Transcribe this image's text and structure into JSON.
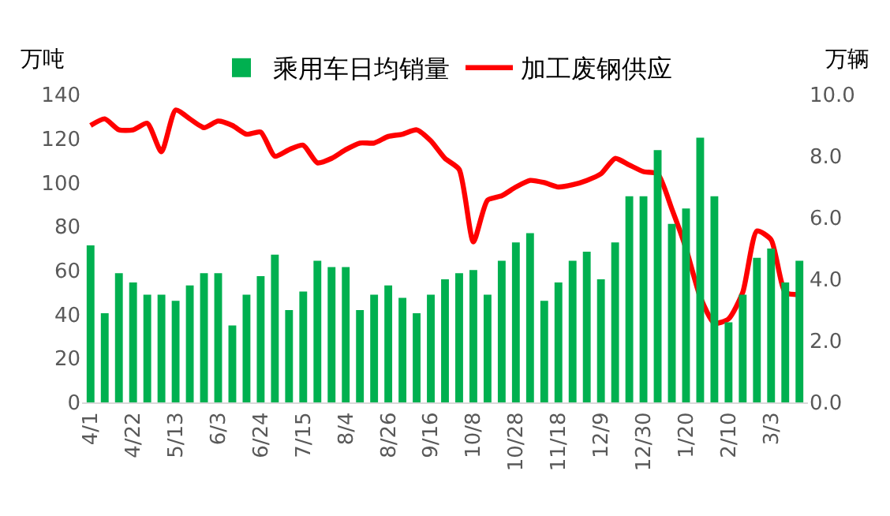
{
  "chart_data": {
    "type": "bar",
    "ylabel": "万吨",
    "y2label": "万辆",
    "categories": [
      "4/1",
      null,
      null,
      "4/22",
      null,
      null,
      "5/13",
      null,
      null,
      "6/3",
      null,
      null,
      "6/24",
      null,
      null,
      "7/15",
      null,
      null,
      "8/4",
      null,
      null,
      "8/26",
      null,
      null,
      "9/16",
      null,
      null,
      "10/8",
      null,
      null,
      "10/28",
      null,
      null,
      "11/18",
      null,
      null,
      "12/9",
      null,
      null,
      "12/30",
      null,
      null,
      "1/20",
      null,
      null,
      "2/10",
      null,
      null,
      "3/3",
      null,
      null
    ],
    "series": [
      {
        "name": "乘用车日均销量",
        "axis": "y2",
        "color": "#00b050",
        "values": [
          5.1,
          2.9,
          4.2,
          3.9,
          3.5,
          3.5,
          3.3,
          3.8,
          4.2,
          4.2,
          2.5,
          3.5,
          4.1,
          4.8,
          3.0,
          3.6,
          4.6,
          4.4,
          4.4,
          3.0,
          3.5,
          3.8,
          3.4,
          2.9,
          3.5,
          4.0,
          4.2,
          4.3,
          3.5,
          4.6,
          5.2,
          5.5,
          3.3,
          3.9,
          4.6,
          4.9,
          4.0,
          5.2,
          6.7,
          6.7,
          8.2,
          5.8,
          6.3,
          8.6,
          6.7,
          2.6,
          3.5,
          4.7,
          5.0,
          3.9,
          4.6
        ]
      },
      {
        "name": "加工废钢供应",
        "type": "line",
        "axis": "y",
        "color": "#ff0000",
        "values": [
          126,
          129,
          124,
          124,
          127,
          114,
          133,
          129,
          125,
          128,
          126,
          122,
          123,
          112,
          115,
          117,
          109,
          111,
          115,
          118,
          118,
          121,
          122,
          124,
          119,
          111,
          106,
          73,
          92,
          94,
          98,
          101,
          100,
          98,
          99,
          101,
          104,
          111,
          108,
          105,
          104,
          88,
          70,
          48,
          36,
          38,
          50,
          78,
          74,
          50,
          49
        ]
      }
    ],
    "ylim": [
      0,
      140
    ],
    "yticks": [
      0,
      20,
      40,
      60,
      80,
      100,
      120,
      140
    ],
    "y2lim": [
      0,
      10
    ],
    "y2ticks": [
      {
        "value": 0,
        "label": "0.0"
      },
      {
        "value": 2,
        "label": "2.0"
      },
      {
        "value": 4,
        "label": "4.0"
      },
      {
        "value": 6,
        "label": "6.0"
      },
      {
        "value": 8,
        "label": "8.0"
      },
      {
        "value": 10,
        "label": "10.0"
      }
    ],
    "grid": false,
    "legend": "top",
    "marker": "none",
    "line_style": "solid"
  }
}
